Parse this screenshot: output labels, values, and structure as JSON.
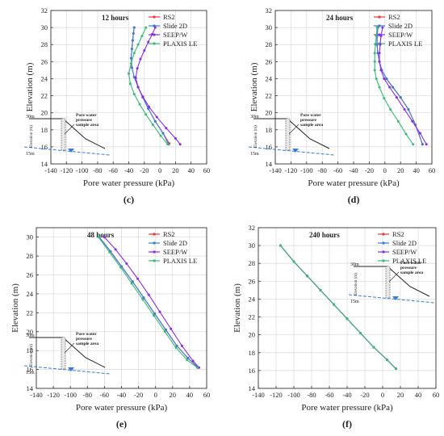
{
  "colors": {
    "RS2": "#e8383d",
    "Slide 2D": "#3a7bd5",
    "SEEP/W": "#8a2be2",
    "PLAXIS LE": "#3cb878",
    "water_line": "#3a7bd5",
    "slope_line": "#222222",
    "grid": "#d9d9d9"
  },
  "inset": {
    "top_label": "30m",
    "bottom_label": "15m",
    "axis_label": "Elevation (m)",
    "annotation": "Pore water pressure sample area"
  },
  "chart_data": [
    {
      "type": "line",
      "panel_label": "(c)",
      "title": "12 hours",
      "xlabel": "Pore water pressure (kPa)",
      "ylabel": "Elevation (m)",
      "xlim": [
        -140,
        60
      ],
      "ylim": [
        14,
        32
      ],
      "xticks": [
        -140,
        -120,
        -100,
        -80,
        -60,
        -40,
        -20,
        0,
        20,
        40,
        60
      ],
      "yticks": [
        14,
        16,
        18,
        20,
        22,
        24,
        26,
        28,
        30,
        32
      ],
      "grid": true,
      "legend_position": "top-right",
      "series": [
        {
          "name": "RS2",
          "x": [
            -33,
            -34,
            -35,
            -36,
            -37,
            -36,
            -33,
            -28,
            -22,
            -15,
            -6,
            4,
            12
          ],
          "y": [
            30,
            29.3,
            28.5,
            27.5,
            26.4,
            25.3,
            24.2,
            23,
            21.8,
            20.5,
            19,
            17.6,
            16.4
          ]
        },
        {
          "name": "Slide 2D",
          "x": [
            -33,
            -34,
            -35,
            -36,
            -37,
            -36,
            -33,
            -28,
            -22,
            -15,
            -6,
            4,
            11
          ],
          "y": [
            30,
            29.3,
            28.5,
            27.5,
            26.4,
            25.3,
            24.2,
            23,
            21.8,
            20.5,
            19,
            17.6,
            16.3
          ]
        },
        {
          "name": "SEEP/W",
          "x": [
            -6,
            -10,
            -15,
            -20,
            -25,
            -29,
            -31,
            -28,
            -22,
            -14,
            -4,
            8,
            20,
            26
          ],
          "y": [
            30,
            29.2,
            28.3,
            27.3,
            26.3,
            25.2,
            24.1,
            23,
            21.9,
            20.7,
            19.5,
            18.2,
            17,
            16.3
          ]
        },
        {
          "name": "PLAXIS LE",
          "x": [
            -18,
            -23,
            -28,
            -33,
            -37,
            -40,
            -38,
            -33,
            -26,
            -18,
            -9,
            1,
            10
          ],
          "y": [
            30,
            29,
            28,
            27,
            25.8,
            24.6,
            23.4,
            22.2,
            21,
            19.8,
            18.6,
            17.3,
            16.3
          ]
        }
      ]
    },
    {
      "type": "line",
      "panel_label": "(d)",
      "title": "24 hours",
      "xlabel": "Pore water pressure (kPa)",
      "ylabel": "Elevation (m)",
      "xlim": [
        -140,
        60
      ],
      "ylim": [
        14,
        32
      ],
      "xticks": [
        -140,
        -120,
        -100,
        -80,
        -60,
        -40,
        -20,
        0,
        20,
        40,
        60
      ],
      "yticks": [
        14,
        16,
        18,
        20,
        22,
        24,
        26,
        28,
        30,
        32
      ],
      "grid": true,
      "legend_position": "top-right",
      "series": [
        {
          "name": "RS2",
          "x": [
            -9,
            -10,
            -10,
            -9,
            -7,
            -4,
            2,
            10,
            20,
            30,
            39,
            48
          ],
          "y": [
            30,
            29,
            28,
            27,
            26,
            25,
            24,
            23,
            21.8,
            20.4,
            18.6,
            16.3
          ]
        },
        {
          "name": "Slide 2D",
          "x": [
            -9,
            -10,
            -10,
            -9,
            -7,
            -4,
            2,
            10,
            20,
            30,
            39,
            48
          ],
          "y": [
            30,
            29,
            28,
            27,
            26,
            25,
            24,
            23,
            21.8,
            20.4,
            18.6,
            16.3
          ]
        },
        {
          "name": "SEEP/W",
          "x": [
            -3,
            -5,
            -6,
            -7,
            -7,
            -5,
            -1,
            6,
            15,
            25,
            35,
            45,
            53
          ],
          "y": [
            30,
            29,
            28,
            27,
            26,
            25,
            24,
            23,
            21.8,
            20.4,
            19,
            17.6,
            16.3
          ]
        },
        {
          "name": "PLAXIS LE",
          "x": [
            -10,
            -11,
            -12,
            -13,
            -13,
            -13,
            -11,
            -7,
            -1,
            7,
            17,
            27,
            36
          ],
          "y": [
            30,
            29,
            28,
            27,
            26,
            25,
            24,
            23,
            21.7,
            20.4,
            19,
            17.5,
            16.3
          ]
        }
      ]
    },
    {
      "type": "line",
      "panel_label": "(e)",
      "title": "48 hours",
      "xlabel": "Pore water pressure (kPa)",
      "ylabel": "Elevation (m)",
      "xlim": [
        -140,
        60
      ],
      "ylim": [
        14,
        31
      ],
      "xticks": [
        -140,
        -120,
        -100,
        -80,
        -60,
        -40,
        -20,
        0,
        20,
        40,
        60
      ],
      "yticks": [
        14,
        16,
        18,
        20,
        22,
        24,
        26,
        28,
        30
      ],
      "grid": true,
      "legend_position": "top-right",
      "series": [
        {
          "name": "RS2",
          "x": [
            -66,
            -53,
            -40,
            -27,
            -14,
            -1,
            12,
            25,
            38,
            50
          ],
          "y": [
            30,
            28.5,
            26.9,
            25.3,
            23.6,
            21.9,
            20.2,
            18.5,
            17.2,
            16.2
          ]
        },
        {
          "name": "Slide 2D",
          "x": [
            -66,
            -53,
            -40,
            -27,
            -14,
            -1,
            12,
            25,
            38,
            50
          ],
          "y": [
            30,
            28.5,
            26.9,
            25.3,
            23.6,
            21.9,
            20.2,
            18.5,
            17.2,
            16.2
          ]
        },
        {
          "name": "SEEP/W",
          "x": [
            -60,
            -47,
            -34,
            -21,
            -8,
            5,
            18,
            31,
            44,
            51
          ],
          "y": [
            30,
            28.7,
            27.2,
            25.6,
            23.9,
            22.1,
            20.3,
            18.5,
            16.9,
            16.2
          ]
        },
        {
          "name": "PLAXIS LE",
          "x": [
            -67,
            -54,
            -41,
            -28,
            -15,
            -2,
            11,
            24,
            37,
            49
          ],
          "y": [
            30,
            28.4,
            26.8,
            25.1,
            23.4,
            21.7,
            20,
            18.3,
            17,
            16.2
          ]
        }
      ]
    },
    {
      "type": "line",
      "panel_label": "(f)",
      "title": "240 hours",
      "xlabel": "Pore water pressure (kPa)",
      "ylabel": "Elevation (m)",
      "xlim": [
        -140,
        60
      ],
      "ylim": [
        14,
        32
      ],
      "xticks": [
        -140,
        -120,
        -100,
        -80,
        -60,
        -40,
        -20,
        0,
        20,
        40,
        60
      ],
      "yticks": [
        14,
        16,
        18,
        20,
        22,
        24,
        26,
        28,
        30,
        32
      ],
      "grid": true,
      "legend_position": "top-right",
      "series": [
        {
          "name": "RS2",
          "x": [
            -115,
            -100,
            -85,
            -70,
            -55,
            -40,
            -25,
            -10,
            5,
            15
          ],
          "y": [
            30,
            28.2,
            26.6,
            25,
            23.4,
            21.8,
            20.2,
            18.6,
            17.2,
            16.2
          ]
        },
        {
          "name": "Slide 2D",
          "x": [
            -115,
            -100,
            -85,
            -70,
            -55,
            -40,
            -25,
            -10,
            5,
            15
          ],
          "y": [
            30,
            28.2,
            26.6,
            25,
            23.4,
            21.8,
            20.2,
            18.6,
            17.2,
            16.2
          ]
        },
        {
          "name": "SEEP/W",
          "x": [
            -115,
            -100,
            -85,
            -70,
            -55,
            -40,
            -25,
            -10,
            5,
            15
          ],
          "y": [
            30,
            28.2,
            26.6,
            25,
            23.4,
            21.8,
            20.2,
            18.6,
            17.2,
            16.2
          ]
        },
        {
          "name": "PLAXIS LE",
          "x": [
            -115,
            -100,
            -85,
            -70,
            -55,
            -40,
            -25,
            -10,
            5,
            15
          ],
          "y": [
            30,
            28.2,
            26.6,
            25,
            23.4,
            21.8,
            20.2,
            18.6,
            17.2,
            16.2
          ]
        }
      ]
    }
  ]
}
